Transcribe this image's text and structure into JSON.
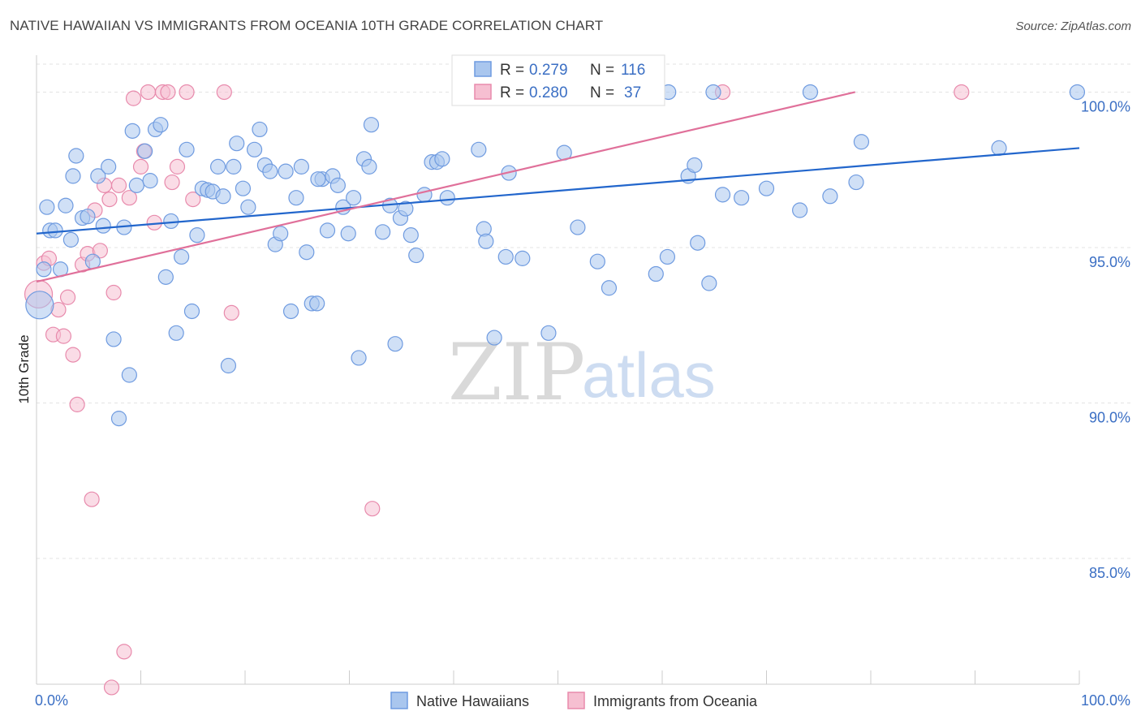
{
  "title": "NATIVE HAWAIIAN VS IMMIGRANTS FROM OCEANIA 10TH GRADE CORRELATION CHART",
  "source": "Source: ZipAtlas.com",
  "colors": {
    "blue_fill": "#a9c6ee",
    "blue_stroke": "#6f9be0",
    "blue_line": "#2266cc",
    "pink_fill": "#f6bfd1",
    "pink_stroke": "#e88aac",
    "pink_line": "#e0709a",
    "tick_text": "#3b6fc4",
    "grid": "#e3e3e3"
  },
  "stats": {
    "r_label": "R =",
    "n_label": "N =",
    "series1": {
      "r": "0.279",
      "n": "116"
    },
    "series2": {
      "r": "0.280",
      "n": "37"
    }
  },
  "watermark": {
    "zip": "ZIP",
    "atlas": "atlas"
  },
  "chart_data": {
    "type": "scatter",
    "xlabel": "",
    "ylabel": "10th Grade",
    "xlim": [
      0,
      100
    ],
    "ylim": [
      80.9,
      100.9
    ],
    "x_tick_labels": [
      "0.0%",
      "100.0%"
    ],
    "y_ticks": [
      85,
      90,
      95,
      100
    ],
    "y_tick_labels": [
      "85.0%",
      "90.0%",
      "95.0%",
      "100.0%"
    ],
    "grid": true,
    "legend_position": "bottom-center",
    "series": [
      {
        "name": "Native Hawaiians",
        "r": 0.279,
        "n": 116,
        "trend": {
          "x0": 0,
          "y0": 95.45,
          "x1": 100,
          "y1": 98.2
        },
        "points": [
          [
            0.3,
            93.15
          ],
          [
            0.7,
            94.3
          ],
          [
            1.3,
            95.55
          ],
          [
            1.8,
            95.55
          ],
          [
            2.3,
            94.3
          ],
          [
            2.8,
            96.35
          ],
          [
            3.3,
            95.25
          ],
          [
            3.8,
            97.95
          ],
          [
            4.4,
            95.95
          ],
          [
            4.9,
            96.0
          ],
          [
            5.4,
            94.55
          ],
          [
            5.9,
            97.3
          ],
          [
            6.4,
            95.7
          ],
          [
            6.9,
            97.6
          ],
          [
            7.4,
            92.05
          ],
          [
            7.9,
            89.5
          ],
          [
            8.4,
            95.65
          ],
          [
            8.9,
            90.9
          ],
          [
            9.2,
            98.75
          ],
          [
            9.6,
            97.0
          ],
          [
            10.4,
            98.1
          ],
          [
            10.9,
            97.15
          ],
          [
            11.4,
            98.8
          ],
          [
            11.9,
            98.95
          ],
          [
            12.4,
            94.05
          ],
          [
            12.9,
            95.85
          ],
          [
            13.4,
            92.25
          ],
          [
            13.9,
            94.7
          ],
          [
            14.4,
            98.15
          ],
          [
            14.9,
            92.95
          ],
          [
            15.4,
            95.4
          ],
          [
            15.9,
            96.9
          ],
          [
            16.4,
            96.85
          ],
          [
            16.9,
            96.8
          ],
          [
            17.4,
            97.6
          ],
          [
            17.9,
            96.65
          ],
          [
            18.4,
            91.2
          ],
          [
            18.9,
            97.6
          ],
          [
            19.2,
            98.35
          ],
          [
            19.8,
            96.9
          ],
          [
            20.3,
            96.3
          ],
          [
            20.9,
            98.15
          ],
          [
            21.4,
            98.8
          ],
          [
            21.9,
            97.65
          ],
          [
            22.4,
            97.45
          ],
          [
            22.9,
            95.1
          ],
          [
            23.4,
            95.45
          ],
          [
            23.9,
            97.45
          ],
          [
            24.4,
            92.95
          ],
          [
            24.9,
            96.6
          ],
          [
            25.4,
            97.6
          ],
          [
            25.9,
            94.85
          ],
          [
            26.4,
            93.2
          ],
          [
            26.9,
            93.2
          ],
          [
            27.4,
            97.2
          ],
          [
            27.9,
            95.55
          ],
          [
            28.4,
            97.3
          ],
          [
            28.9,
            97.0
          ],
          [
            29.4,
            96.3
          ],
          [
            29.9,
            95.45
          ],
          [
            30.4,
            96.6
          ],
          [
            30.9,
            91.45
          ],
          [
            31.4,
            97.85
          ],
          [
            31.9,
            97.6
          ],
          [
            32.1,
            98.95
          ],
          [
            33.2,
            95.5
          ],
          [
            33.9,
            96.35
          ],
          [
            34.4,
            91.9
          ],
          [
            34.9,
            95.95
          ],
          [
            35.4,
            96.25
          ],
          [
            35.9,
            95.4
          ],
          [
            36.4,
            94.75
          ],
          [
            37.2,
            96.7
          ],
          [
            37.9,
            97.75
          ],
          [
            38.4,
            97.75
          ],
          [
            38.9,
            97.85
          ],
          [
            39.4,
            96.6
          ],
          [
            41.0,
            100.0
          ],
          [
            42.4,
            98.15
          ],
          [
            42.9,
            95.6
          ],
          [
            43.1,
            95.2
          ],
          [
            43.9,
            92.1
          ],
          [
            45.0,
            94.7
          ],
          [
            45.3,
            97.4
          ],
          [
            46.6,
            94.65
          ],
          [
            49.1,
            92.25
          ],
          [
            50.0,
            100.0
          ],
          [
            50.6,
            98.05
          ],
          [
            51.9,
            95.65
          ],
          [
            53.8,
            94.55
          ],
          [
            54.9,
            93.7
          ],
          [
            57.7,
            100.0
          ],
          [
            58.4,
            100.0
          ],
          [
            59.4,
            94.15
          ],
          [
            60.5,
            94.7
          ],
          [
            60.6,
            100.0
          ],
          [
            62.5,
            97.3
          ],
          [
            63.1,
            97.65
          ],
          [
            63.4,
            95.15
          ],
          [
            64.5,
            93.85
          ],
          [
            64.9,
            100.0
          ],
          [
            65.8,
            96.7
          ],
          [
            67.6,
            96.6
          ],
          [
            70.0,
            96.9
          ],
          [
            73.2,
            96.2
          ],
          [
            74.2,
            100.0
          ],
          [
            76.1,
            96.65
          ],
          [
            78.6,
            97.1
          ],
          [
            79.1,
            98.4
          ],
          [
            92.3,
            98.2
          ],
          [
            99.8,
            100.0
          ],
          [
            1.0,
            96.3
          ],
          [
            3.5,
            97.3
          ],
          [
            27.0,
            97.2
          ],
          [
            47.1,
            100.0
          ]
        ]
      },
      {
        "name": "Immigrants from Oceania",
        "r": 0.28,
        "n": 37,
        "trend": {
          "x0": 0,
          "y0": 93.9,
          "x1": 78.5,
          "y1": 100.0
        },
        "points": [
          [
            0.2,
            93.5
          ],
          [
            0.7,
            94.5
          ],
          [
            1.2,
            94.65
          ],
          [
            1.6,
            92.2
          ],
          [
            2.1,
            93.0
          ],
          [
            2.6,
            92.15
          ],
          [
            3.0,
            93.4
          ],
          [
            3.5,
            91.55
          ],
          [
            3.9,
            89.95
          ],
          [
            4.4,
            94.45
          ],
          [
            4.9,
            94.8
          ],
          [
            5.3,
            86.9
          ],
          [
            5.6,
            96.2
          ],
          [
            6.1,
            94.9
          ],
          [
            6.5,
            97.0
          ],
          [
            7.0,
            96.55
          ],
          [
            7.4,
            93.55
          ],
          [
            7.9,
            97.0
          ],
          [
            8.4,
            82.0
          ],
          [
            8.9,
            96.6
          ],
          [
            9.3,
            99.8
          ],
          [
            10.0,
            97.6
          ],
          [
            10.3,
            98.1
          ],
          [
            10.7,
            100.0
          ],
          [
            11.3,
            95.8
          ],
          [
            12.1,
            100.0
          ],
          [
            12.6,
            100.0
          ],
          [
            13.0,
            97.1
          ],
          [
            13.5,
            97.6
          ],
          [
            14.4,
            100.0
          ],
          [
            15.0,
            96.55
          ],
          [
            18.0,
            100.0
          ],
          [
            18.7,
            92.9
          ],
          [
            32.2,
            86.6
          ],
          [
            65.8,
            100.0
          ],
          [
            88.7,
            100.0
          ],
          [
            7.2,
            80.85
          ]
        ]
      }
    ]
  }
}
